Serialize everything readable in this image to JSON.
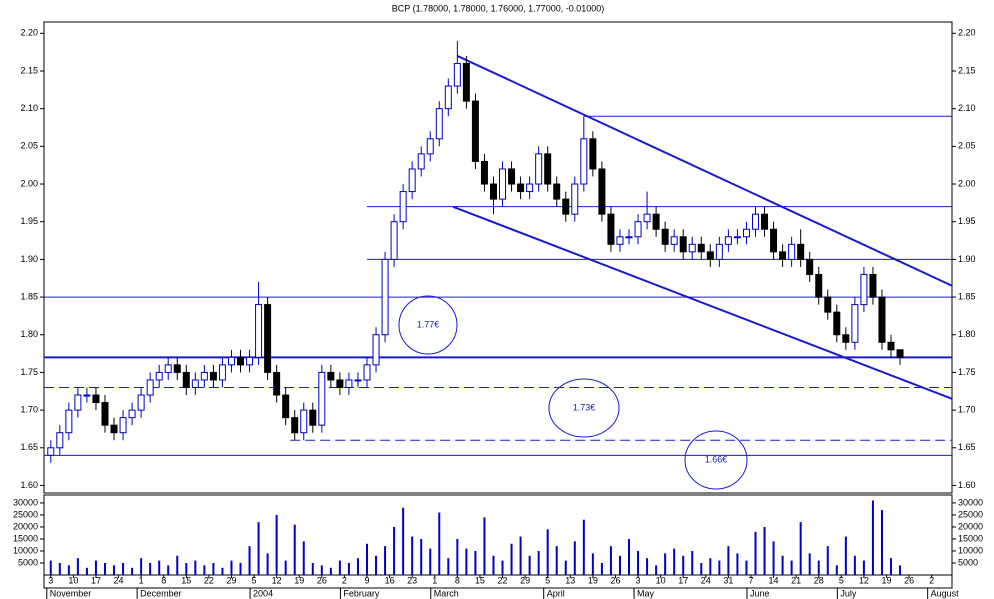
{
  "chart_data": {
    "type": "candlestick",
    "title": "BCP (1.78000, 1.78000, 1.76000, 1.77000, -0.01000)",
    "x": [
      0,
      2,
      4,
      6,
      8,
      10,
      12,
      14,
      16,
      18,
      20,
      22,
      24,
      26,
      28,
      30,
      32,
      34,
      36,
      38,
      40,
      42,
      44,
      46,
      48,
      50,
      52,
      54,
      56,
      58,
      60,
      62,
      64,
      66,
      68,
      70,
      72,
      74,
      76,
      78,
      80,
      82,
      84,
      86,
      88,
      90,
      92,
      94,
      96,
      98,
      100,
      102,
      104,
      106,
      108,
      110,
      112,
      114,
      116,
      118,
      120,
      122,
      124,
      126,
      128,
      130,
      132,
      134,
      136,
      138,
      140,
      142,
      144,
      146,
      148,
      150,
      152,
      154,
      156,
      158,
      160,
      162,
      164,
      166,
      168,
      170,
      172,
      174,
      176,
      178,
      180,
      182,
      184,
      186,
      188
    ],
    "open": [
      1.64,
      1.65,
      1.67,
      1.7,
      1.72,
      1.72,
      1.71,
      1.68,
      1.67,
      1.69,
      1.7,
      1.72,
      1.74,
      1.75,
      1.76,
      1.75,
      1.73,
      1.74,
      1.75,
      1.74,
      1.76,
      1.77,
      1.76,
      1.77,
      1.84,
      1.75,
      1.72,
      1.69,
      1.67,
      1.7,
      1.68,
      1.75,
      1.74,
      1.73,
      1.74,
      1.74,
      1.76,
      1.8,
      1.9,
      1.95,
      1.99,
      2.02,
      2.04,
      2.06,
      2.1,
      2.13,
      2.16,
      2.11,
      2.03,
      2.0,
      1.98,
      2.02,
      2.0,
      1.99,
      2.0,
      2.04,
      2.0,
      1.98,
      1.96,
      2.0,
      2.06,
      2.02,
      1.96,
      1.92,
      1.93,
      1.93,
      1.95,
      1.96,
      1.94,
      1.92,
      1.93,
      1.91,
      1.92,
      1.91,
      1.9,
      1.92,
      1.93,
      1.93,
      1.94,
      1.96,
      1.94,
      1.91,
      1.9,
      1.92,
      1.9,
      1.88,
      1.85,
      1.83,
      1.8,
      1.79,
      1.84,
      1.88,
      1.85,
      1.79,
      1.78
    ],
    "high": [
      1.66,
      1.68,
      1.71,
      1.73,
      1.73,
      1.73,
      1.72,
      1.69,
      1.7,
      1.71,
      1.73,
      1.75,
      1.76,
      1.77,
      1.77,
      1.76,
      1.75,
      1.76,
      1.76,
      1.77,
      1.78,
      1.78,
      1.78,
      1.87,
      1.85,
      1.76,
      1.73,
      1.7,
      1.71,
      1.71,
      1.76,
      1.76,
      1.75,
      1.75,
      1.75,
      1.77,
      1.81,
      1.91,
      1.96,
      2.0,
      2.03,
      2.05,
      2.07,
      2.11,
      2.14,
      2.19,
      2.17,
      2.12,
      2.04,
      2.01,
      2.03,
      2.03,
      2.01,
      2.01,
      2.05,
      2.05,
      2.01,
      1.99,
      2.01,
      2.09,
      2.07,
      2.03,
      1.97,
      1.94,
      1.94,
      1.96,
      1.99,
      1.97,
      1.95,
      1.94,
      1.94,
      1.93,
      1.93,
      1.92,
      1.93,
      1.94,
      1.94,
      1.95,
      1.97,
      1.97,
      1.95,
      1.92,
      1.93,
      1.94,
      1.91,
      1.89,
      1.86,
      1.84,
      1.81,
      1.85,
      1.89,
      1.89,
      1.86,
      1.8,
      1.78
    ],
    "low": [
      1.63,
      1.64,
      1.66,
      1.69,
      1.71,
      1.7,
      1.67,
      1.66,
      1.66,
      1.68,
      1.69,
      1.71,
      1.73,
      1.74,
      1.74,
      1.72,
      1.72,
      1.73,
      1.73,
      1.73,
      1.75,
      1.75,
      1.75,
      1.76,
      1.74,
      1.71,
      1.68,
      1.66,
      1.66,
      1.67,
      1.67,
      1.73,
      1.72,
      1.72,
      1.73,
      1.73,
      1.75,
      1.79,
      1.89,
      1.94,
      1.98,
      2.01,
      2.03,
      2.05,
      2.09,
      2.12,
      2.1,
      2.02,
      1.99,
      1.96,
      1.97,
      1.99,
      1.98,
      1.98,
      1.99,
      1.99,
      1.97,
      1.95,
      1.95,
      1.99,
      2.01,
      1.95,
      1.91,
      1.91,
      1.92,
      1.92,
      1.94,
      1.93,
      1.91,
      1.91,
      1.9,
      1.9,
      1.9,
      1.89,
      1.89,
      1.91,
      1.92,
      1.92,
      1.93,
      1.93,
      1.9,
      1.89,
      1.89,
      1.89,
      1.87,
      1.84,
      1.82,
      1.79,
      1.78,
      1.78,
      1.83,
      1.84,
      1.78,
      1.77,
      1.76
    ],
    "close": [
      1.65,
      1.67,
      1.7,
      1.72,
      1.72,
      1.71,
      1.68,
      1.67,
      1.69,
      1.7,
      1.72,
      1.74,
      1.75,
      1.76,
      1.75,
      1.73,
      1.74,
      1.75,
      1.74,
      1.76,
      1.77,
      1.76,
      1.77,
      1.84,
      1.75,
      1.72,
      1.69,
      1.67,
      1.7,
      1.68,
      1.75,
      1.74,
      1.73,
      1.74,
      1.74,
      1.76,
      1.8,
      1.9,
      1.95,
      1.99,
      2.02,
      2.04,
      2.06,
      2.1,
      2.13,
      2.16,
      2.11,
      2.03,
      2.0,
      1.98,
      2.02,
      2.0,
      1.99,
      2.0,
      2.04,
      2.0,
      1.98,
      1.96,
      2.0,
      2.06,
      2.02,
      1.96,
      1.92,
      1.93,
      1.93,
      1.95,
      1.96,
      1.94,
      1.92,
      1.93,
      1.91,
      1.92,
      1.91,
      1.9,
      1.92,
      1.93,
      1.93,
      1.94,
      1.96,
      1.94,
      1.91,
      1.9,
      1.92,
      1.9,
      1.88,
      1.85,
      1.83,
      1.8,
      1.79,
      1.84,
      1.88,
      1.85,
      1.79,
      1.78,
      1.77
    ],
    "volume": [
      6000,
      5000,
      4000,
      7000,
      3000,
      6000,
      5000,
      4000,
      5000,
      3000,
      7000,
      5000,
      6000,
      4000,
      8000,
      5000,
      6000,
      4000,
      5000,
      3000,
      6000,
      5000,
      12000,
      22000,
      9000,
      25000,
      6000,
      21000,
      14000,
      5000,
      4000,
      3000,
      6000,
      5000,
      7000,
      13000,
      8000,
      12000,
      20000,
      28000,
      16000,
      15000,
      11000,
      26000,
      7000,
      15000,
      11000,
      10000,
      24000,
      8000,
      6000,
      13000,
      16000,
      8000,
      10000,
      19000,
      12000,
      6000,
      14000,
      23000,
      9000,
      5000,
      12000,
      8000,
      15000,
      10000,
      7000,
      4000,
      9000,
      11000,
      8000,
      10000,
      5000,
      7000,
      6000,
      12000,
      9000,
      6000,
      18000,
      20000,
      14000,
      8000,
      6000,
      22000,
      9000,
      6000,
      12000,
      4000,
      16000,
      8000,
      6000,
      31000,
      27000,
      7000,
      4000
    ],
    "colors": {
      "up_fill": "#ffffff",
      "up_stroke": "#0000c8",
      "down": "#000000",
      "volume": "#0000c8",
      "lines": "#1a1ad0"
    },
    "xlim": [
      -1.5,
      199.5
    ],
    "ylim": [
      1.59,
      2.215
    ],
    "y2lim": [
      0,
      33300
    ],
    "yticks": [
      {
        "value": 1.6,
        "label": "1.60"
      },
      {
        "value": 1.65,
        "label": "1.65"
      },
      {
        "value": 1.7,
        "label": "1.70"
      },
      {
        "value": 1.75,
        "label": "1.75"
      },
      {
        "value": 1.8,
        "label": "1.80"
      },
      {
        "value": 1.85,
        "label": "1.85"
      },
      {
        "value": 1.9,
        "label": "1.90"
      },
      {
        "value": 1.95,
        "label": "1.95"
      },
      {
        "value": 2.0,
        "label": "2.00"
      },
      {
        "value": 2.05,
        "label": "2.05"
      },
      {
        "value": 2.1,
        "label": "2.10"
      },
      {
        "value": 2.15,
        "label": "2.15"
      },
      {
        "value": 2.2,
        "label": "2.20"
      }
    ],
    "y2ticks": [
      5000,
      10000,
      15000,
      20000,
      25000,
      30000
    ],
    "xticks": [
      {
        "value": 0,
        "label": "3"
      },
      {
        "value": 5,
        "label": "10"
      },
      {
        "value": 10,
        "label": "17"
      },
      {
        "value": 15,
        "label": "24"
      },
      {
        "value": 20,
        "label": "1"
      },
      {
        "value": 25,
        "label": "8"
      },
      {
        "value": 30,
        "label": "15"
      },
      {
        "value": 35,
        "label": "22"
      },
      {
        "value": 40,
        "label": "29"
      },
      {
        "value": 45,
        "label": "5"
      },
      {
        "value": 50,
        "label": "12"
      },
      {
        "value": 55,
        "label": "19"
      },
      {
        "value": 60,
        "label": "26"
      },
      {
        "value": 65,
        "label": "2"
      },
      {
        "value": 70,
        "label": "9"
      },
      {
        "value": 75,
        "label": "16"
      },
      {
        "value": 80,
        "label": "23"
      },
      {
        "value": 85,
        "label": "1"
      },
      {
        "value": 90,
        "label": "8"
      },
      {
        "value": 95,
        "label": "15"
      },
      {
        "value": 100,
        "label": "22"
      },
      {
        "value": 105,
        "label": "29"
      },
      {
        "value": 110,
        "label": "5"
      },
      {
        "value": 115,
        "label": "13"
      },
      {
        "value": 120,
        "label": "19"
      },
      {
        "value": 125,
        "label": "26"
      },
      {
        "value": 130,
        "label": "3"
      },
      {
        "value": 135,
        "label": "10"
      },
      {
        "value": 140,
        "label": "17"
      },
      {
        "value": 145,
        "label": "24"
      },
      {
        "value": 150,
        "label": "31"
      },
      {
        "value": 155,
        "label": "7"
      },
      {
        "value": 160,
        "label": "14"
      },
      {
        "value": 165,
        "label": "21"
      },
      {
        "value": 170,
        "label": "28"
      },
      {
        "value": 175,
        "label": "5"
      },
      {
        "value": 180,
        "label": "12"
      },
      {
        "value": 185,
        "label": "19"
      },
      {
        "value": 190,
        "label": "26"
      },
      {
        "value": 195,
        "label": "2"
      }
    ],
    "months": [
      "November",
      "December",
      "2004",
      "February",
      "March",
      "April",
      "May",
      "June",
      "July",
      "August"
    ],
    "hlines": [
      {
        "value": 2.09,
        "from": 118,
        "style": "solid"
      },
      {
        "value": 1.97,
        "from": 70,
        "style": "solid"
      },
      {
        "value": 1.9,
        "from": 70,
        "style": "solid"
      },
      {
        "value": 1.85,
        "from": -1.5,
        "style": "solid"
      },
      {
        "value": 1.77,
        "from": -1.5,
        "style": "thick"
      },
      {
        "value": 1.73,
        "from": -1.5,
        "style": "dashed"
      },
      {
        "value": 1.66,
        "from": 53,
        "style": "dashed"
      },
      {
        "value": 1.64,
        "from": -1.5,
        "style": "solid"
      }
    ],
    "trendlines": [
      {
        "x": [
          90,
          199.5
        ],
        "y": [
          2.17,
          1.865
        ]
      },
      {
        "x": [
          89,
          199.5
        ],
        "y": [
          1.97,
          1.715
        ]
      }
    ],
    "annotations": [
      "1.77€",
      "1.73€",
      "1.66€"
    ]
  }
}
